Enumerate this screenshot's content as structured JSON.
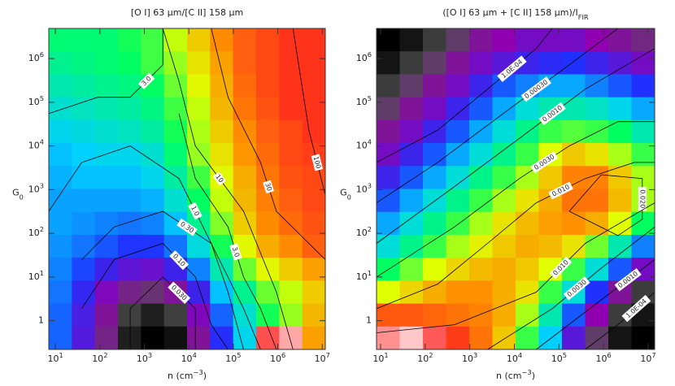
{
  "chart_data": [
    {
      "type": "heatmap",
      "title": {
        "text": "[O I] 63 μm/[C II] 158 μm"
      },
      "xlabel": {
        "text": "n (cm",
        "sup": "−3",
        "tail": ")"
      },
      "ylabel": {
        "text": "G",
        "sub": "0"
      },
      "xlim": [
        7.1,
        11700000
      ],
      "ylim": [
        0.22,
        4900000
      ],
      "log": true,
      "xticks": [
        {
          "value": 10,
          "label": "10",
          "sup": "1"
        },
        {
          "value": 100,
          "label": "10",
          "sup": "2"
        },
        {
          "value": 1000,
          "label": "10",
          "sup": "3"
        },
        {
          "value": 10000,
          "label": "10",
          "sup": "4"
        },
        {
          "value": 100000,
          "label": "10",
          "sup": "5"
        },
        {
          "value": 1000000,
          "label": "10",
          "sup": "6"
        },
        {
          "value": 10000000,
          "label": "10",
          "sup": "7"
        }
      ],
      "yticks": [
        1,
        {
          "value": 10,
          "label": "10",
          "sup": "1"
        },
        {
          "value": 100,
          "label": "10",
          "sup": "2"
        },
        {
          "value": 1000,
          "label": "10",
          "sup": "3"
        },
        {
          "value": 10000,
          "label": "10",
          "sup": "4"
        },
        {
          "value": 100000,
          "label": "10",
          "sup": "5"
        },
        {
          "value": 1000000,
          "label": "10",
          "sup": "6"
        }
      ],
      "colormap": [
        "#000000",
        "#505050",
        "#9000b0",
        "#2030ff",
        "#00d0ff",
        "#00ff60",
        "#e0ff00",
        "#ff9000",
        "#ff2020",
        "#ffffff"
      ],
      "zlim": [
        -2,
        2.6
      ],
      "z": [
        [
          0.5,
          0.5,
          0.5,
          0.6,
          0.7,
          1.0,
          1.3,
          1.6,
          1.8,
          1.9,
          2.0,
          2.0
        ],
        [
          0.4,
          0.45,
          0.5,
          0.55,
          0.7,
          0.9,
          1.2,
          1.5,
          1.8,
          1.9,
          2.0,
          2.0
        ],
        [
          0.3,
          0.35,
          0.4,
          0.45,
          0.55,
          0.8,
          1.1,
          1.45,
          1.75,
          1.9,
          2.0,
          2.0
        ],
        [
          0.2,
          0.25,
          0.3,
          0.35,
          0.45,
          0.7,
          1.0,
          1.4,
          1.7,
          1.85,
          2.0,
          2.0
        ],
        [
          0.1,
          0.15,
          0.2,
          0.25,
          0.35,
          0.6,
          0.95,
          1.3,
          1.6,
          1.8,
          1.9,
          2.0
        ],
        [
          0.0,
          0.05,
          0.1,
          0.1,
          0.2,
          0.5,
          0.9,
          1.2,
          1.55,
          1.75,
          1.9,
          1.95
        ],
        [
          -0.05,
          0,
          0,
          0,
          0.1,
          0.35,
          0.7,
          1.1,
          1.45,
          1.7,
          1.85,
          1.9
        ],
        [
          -0.1,
          -0.1,
          -0.1,
          -0.1,
          -0.05,
          0.2,
          0.55,
          1.0,
          1.4,
          1.65,
          1.8,
          1.9
        ],
        [
          -0.1,
          -0.15,
          -0.2,
          -0.25,
          -0.2,
          0,
          0.4,
          0.85,
          1.3,
          1.6,
          1.75,
          1.85
        ],
        [
          -0.15,
          -0.25,
          -0.35,
          -0.45,
          -0.45,
          -0.25,
          0.15,
          0.6,
          1.1,
          1.45,
          1.6,
          1.8
        ],
        [
          -0.2,
          -0.4,
          -0.6,
          -0.75,
          -0.8,
          -0.6,
          -0.2,
          0.3,
          0.8,
          1.1,
          1.3,
          1.5
        ],
        [
          -0.25,
          -0.55,
          -0.9,
          -1.2,
          -1.3,
          -1.1,
          -0.6,
          0,
          0.4,
          0.8,
          1.0,
          1.3
        ],
        [
          -0.3,
          -0.65,
          -1.1,
          -1.6,
          -1.8,
          -1.6,
          -0.9,
          -0.3,
          0.2,
          0.6,
          0.9,
          1.4
        ],
        [
          -0.3,
          -0.7,
          -1.2,
          -1.8,
          -2.0,
          -1.9,
          -1.1,
          -0.5,
          0.1,
          2.2,
          2.4,
          1.5
        ]
      ],
      "contours": [
        {
          "label": "3.0",
          "x": [
            7.1,
            89,
            480,
            2600,
            2600
          ],
          "y": [
            55000,
            130000,
            130000,
            720000,
            4900000
          ]
        },
        {
          "label": "1.0",
          "x": [
            7.1,
            39,
            480,
            6000,
            32000,
            170000,
            410000
          ],
          "y": [
            320,
            4200,
            10000,
            1800,
            59,
            1.9,
            0.22
          ]
        },
        {
          "label": "0.30",
          "x": [
            39,
            210,
            2600,
            32000,
            76000,
            170000
          ],
          "y": [
            25,
            140,
            320,
            59,
            4.5,
            0.22
          ]
        },
        {
          "label": "0.10",
          "x": [
            39,
            210,
            2600,
            14000,
            32000,
            76000
          ],
          "y": [
            1.9,
            25,
            59,
            10,
            0.81,
            0.22
          ]
        },
        {
          "label": "0.030",
          "x": [
            480,
            480,
            2600,
            14000,
            14000
          ],
          "y": [
            0.22,
            1.9,
            10,
            1.9,
            0.22
          ]
        },
        {
          "label": "3.0",
          "x": [
            6000,
            14000,
            76000,
            170000,
            410000,
            930000
          ],
          "y": [
            55000,
            1800,
            140,
            10,
            1.9,
            0.22
          ]
        },
        {
          "label": "10",
          "x": [
            2600,
            6000,
            14000,
            170000,
            930000,
            2200000
          ],
          "y": [
            4900000,
            300000,
            10000,
            320,
            4.5,
            0.22
          ]
        },
        {
          "label": "30",
          "x": [
            32000,
            76000,
            410000,
            930000,
            5000000,
            11700000
          ],
          "y": [
            4900000,
            130000,
            4200,
            320,
            59,
            25
          ]
        },
        {
          "label": "100",
          "x": [
            2200000,
            5000000,
            11700000
          ],
          "y": [
            4900000,
            23000,
            760
          ]
        }
      ]
    },
    {
      "type": "heatmap",
      "title": {
        "text": "([O I] 63 μm + [C II] 158 μm)/I",
        "sub": "FIR"
      },
      "xlabel": {
        "text": "n (cm",
        "sup": "−3",
        "tail": ")"
      },
      "ylabel": {
        "text": "G",
        "sub": "0"
      },
      "xlim": [
        8.1,
        14000000
      ],
      "ylim": [
        0.22,
        4900000
      ],
      "log": true,
      "xticks": [
        {
          "value": 10,
          "label": "10",
          "sup": "1"
        },
        {
          "value": 100,
          "label": "10",
          "sup": "2"
        },
        {
          "value": 1000,
          "label": "10",
          "sup": "3"
        },
        {
          "value": 10000,
          "label": "10",
          "sup": "4"
        },
        {
          "value": 100000,
          "label": "10",
          "sup": "5"
        },
        {
          "value": 1000000,
          "label": "10",
          "sup": "6"
        },
        {
          "value": 10000000,
          "label": "10",
          "sup": "7"
        }
      ],
      "yticks": [
        1,
        {
          "value": 10,
          "label": "10",
          "sup": "1"
        },
        {
          "value": 100,
          "label": "10",
          "sup": "2"
        },
        {
          "value": 1000,
          "label": "10",
          "sup": "3"
        },
        {
          "value": 10000,
          "label": "10",
          "sup": "4"
        },
        {
          "value": 100000,
          "label": "10",
          "sup": "5"
        },
        {
          "value": 1000000,
          "label": "10",
          "sup": "6"
        }
      ],
      "colormap": [
        "#000000",
        "#505050",
        "#9000b0",
        "#2030ff",
        "#00d0ff",
        "#00ff60",
        "#e0ff00",
        "#ff9000",
        "#ff2020",
        "#ffffff"
      ],
      "zlim": [
        -4.6,
        -1.0
      ],
      "z": [
        [
          -4.6,
          -4.5,
          -4.3,
          -4.1,
          -3.9,
          -3.8,
          -3.7,
          -3.7,
          -3.7,
          -3.8,
          -3.9,
          -4.0
        ],
        [
          -4.5,
          -4.3,
          -4.1,
          -3.9,
          -3.7,
          -3.6,
          -3.5,
          -3.45,
          -3.4,
          -3.5,
          -3.6,
          -3.7
        ],
        [
          -4.3,
          -4.1,
          -3.9,
          -3.7,
          -3.5,
          -3.3,
          -3.2,
          -3.1,
          -3.1,
          -3.2,
          -3.3,
          -3.4
        ],
        [
          -4.1,
          -3.9,
          -3.7,
          -3.5,
          -3.3,
          -3.1,
          -2.9,
          -2.8,
          -2.8,
          -2.85,
          -2.95,
          -3.1
        ],
        [
          -3.9,
          -3.7,
          -3.5,
          -3.3,
          -3.1,
          -2.9,
          -2.7,
          -2.5,
          -2.45,
          -2.5,
          -2.6,
          -2.8
        ],
        [
          -3.7,
          -3.5,
          -3.3,
          -3.1,
          -2.9,
          -2.7,
          -2.5,
          -2.2,
          -2.0,
          -2.1,
          -2.3,
          -2.5
        ],
        [
          -3.5,
          -3.3,
          -3.1,
          -2.9,
          -2.7,
          -2.5,
          -2.3,
          -2.0,
          -1.75,
          -1.75,
          -2.0,
          -2.3
        ],
        [
          -3.3,
          -3.1,
          -2.9,
          -2.7,
          -2.5,
          -2.3,
          -2.1,
          -1.9,
          -1.7,
          -1.7,
          -1.95,
          -2.3
        ],
        [
          -3.1,
          -2.9,
          -2.7,
          -2.5,
          -2.3,
          -2.1,
          -1.95,
          -1.85,
          -1.8,
          -1.9,
          -2.2,
          -2.6
        ],
        [
          -2.9,
          -2.7,
          -2.5,
          -2.3,
          -2.15,
          -2.0,
          -1.9,
          -1.95,
          -2.1,
          -2.4,
          -2.8,
          -3.2
        ],
        [
          -2.6,
          -2.4,
          -2.2,
          -2.05,
          -1.95,
          -1.9,
          -2.0,
          -2.2,
          -2.5,
          -2.9,
          -3.3,
          -3.7
        ],
        [
          -2.2,
          -2.05,
          -1.9,
          -1.8,
          -1.8,
          -1.9,
          -2.1,
          -2.5,
          -2.9,
          -3.4,
          -3.9,
          -4.3
        ],
        [
          -1.6,
          -1.6,
          -1.65,
          -1.7,
          -1.75,
          -1.9,
          -2.3,
          -2.8,
          -3.3,
          -3.8,
          -4.3,
          -4.5
        ],
        [
          -1.2,
          -1.1,
          -1.3,
          -1.5,
          -1.7,
          -2.0,
          -2.5,
          -3.0,
          -3.6,
          -4.1,
          -4.5,
          -4.6
        ]
      ],
      "contours": [
        {
          "label": "1.0E-04",
          "x": [
            8.1,
            190,
            2500,
            31000,
            71000
          ],
          "y": [
            4200,
            23000,
            200000,
            1700000,
            4900000
          ]
        },
        {
          "label": "0.00030",
          "x": [
            8.1,
            190,
            5600,
            170000,
            2100000
          ],
          "y": [
            500,
            4200,
            55000,
            720000,
            4900000
          ]
        },
        {
          "label": "0.0010",
          "x": [
            8.1,
            450,
            13000,
            390000,
            14000000
          ],
          "y": [
            59,
            1170,
            15000,
            200000,
            1700000
          ]
        },
        {
          "label": "0.0030",
          "x": [
            8.1,
            450,
            13000,
            170000,
            2100000,
            14000000
          ],
          "y": [
            10,
            140,
            1800,
            10000,
            36000,
            36000
          ]
        },
        {
          "label": "0.010",
          "x": [
            8.1,
            190,
            2500,
            31000,
            390000,
            4900000,
            14000000
          ],
          "y": [
            1.9,
            6.9,
            59,
            500,
            1800,
            4200,
            4200
          ]
        },
        {
          "label": "0.020",
          "x": [
            170000,
            890000,
            7400000,
            7400000,
            2100000,
            170000
          ],
          "y": [
            320,
            2200,
            1800,
            210,
            89,
            320
          ]
        },
        {
          "label": "0.010",
          "x": [
            8.1,
            450,
            31000,
            390000,
            14000000
          ],
          "y": [
            0.53,
            0.81,
            4.5,
            59,
            500
          ]
        },
        {
          "label": "0.0030",
          "x": [
            2500,
            71000,
            890000,
            14000000
          ],
          "y": [
            0.22,
            1.9,
            16,
            140
          ]
        },
        {
          "label": "0.0010",
          "x": [
            31000,
            890000,
            14000000
          ],
          "y": [
            0.22,
            3,
            25
          ]
        },
        {
          "label": "1.0E-04",
          "x": [
            390000,
            2100000,
            14000000
          ],
          "y": [
            0.22,
            0.81,
            4.5
          ]
        }
      ]
    }
  ]
}
